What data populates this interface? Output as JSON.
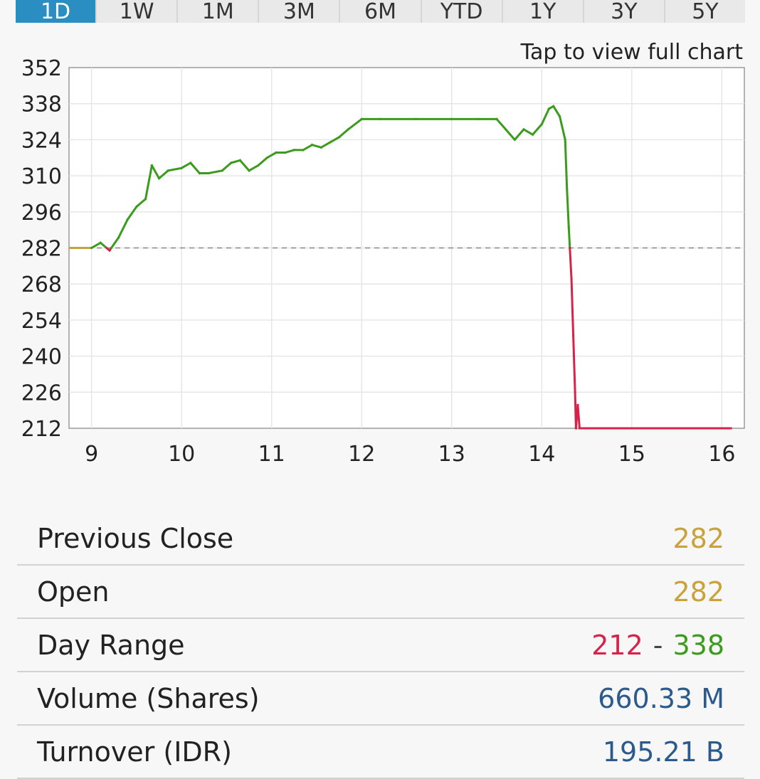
{
  "tabs": [
    {
      "label": "1D",
      "active": true
    },
    {
      "label": "1W",
      "active": false
    },
    {
      "label": "1M",
      "active": false
    },
    {
      "label": "3M",
      "active": false
    },
    {
      "label": "6M",
      "active": false
    },
    {
      "label": "YTD",
      "active": false
    },
    {
      "label": "1Y",
      "active": false
    },
    {
      "label": "3Y",
      "active": false
    },
    {
      "label": "5Y",
      "active": false
    }
  ],
  "chart_hint": "Tap to view full chart",
  "colors": {
    "up": "#3b9b1c",
    "down": "#d6234a",
    "neutral": "#c9a23a",
    "volume": "#2b5a8c",
    "active_tab": "#2a8ec2"
  },
  "chart_data": {
    "type": "line",
    "xlim": [
      8.75,
      16.25
    ],
    "ylim": [
      212,
      352
    ],
    "x_ticks": [
      9,
      10,
      11,
      12,
      13,
      14,
      15,
      16
    ],
    "y_ticks": [
      352,
      338,
      324,
      310,
      296,
      282,
      268,
      254,
      240,
      226,
      212
    ],
    "reference_line": 282,
    "grid": true,
    "series": [
      {
        "x": [
          9.0,
          9.1,
          9.2,
          9.3,
          9.4,
          9.5,
          9.6,
          9.67,
          9.75,
          9.85,
          10.0,
          10.1,
          10.2,
          10.3,
          10.45,
          10.55,
          10.65,
          10.75,
          10.85,
          10.95,
          11.05,
          11.15,
          11.25,
          11.35,
          11.45,
          11.55,
          11.65,
          11.75,
          11.85,
          12.0,
          12.2,
          12.6,
          13.0,
          13.3,
          13.5,
          13.6,
          13.7,
          13.8,
          13.9,
          14.0,
          14.08,
          14.13,
          14.2,
          14.26,
          14.28,
          14.3,
          14.33,
          14.35,
          14.37,
          14.38,
          14.4,
          14.42,
          14.5,
          14.8,
          15.2,
          15.6,
          16.1
        ],
        "y": [
          282,
          284,
          281,
          286,
          293,
          298,
          301,
          314,
          309,
          312,
          313,
          315,
          311,
          311,
          312,
          315,
          316,
          312,
          314,
          317,
          319,
          319,
          320,
          320,
          322,
          321,
          323,
          325,
          328,
          332,
          332,
          332,
          332,
          332,
          332,
          328,
          324,
          328,
          326,
          330,
          336,
          337,
          333,
          324,
          305,
          290,
          270,
          248,
          226,
          212,
          221,
          212,
          212,
          212,
          212,
          212,
          212
        ]
      }
    ]
  },
  "stats": {
    "previous_close": {
      "label": "Previous Close",
      "value": "282"
    },
    "open": {
      "label": "Open",
      "value": "282"
    },
    "day_range": {
      "label": "Day Range",
      "low": "212",
      "separator": "-",
      "high": "338"
    },
    "volume": {
      "label": "Volume (Shares)",
      "value": "660.33 M"
    },
    "turnover": {
      "label": "Turnover (IDR)",
      "value": "195.21 B"
    }
  }
}
